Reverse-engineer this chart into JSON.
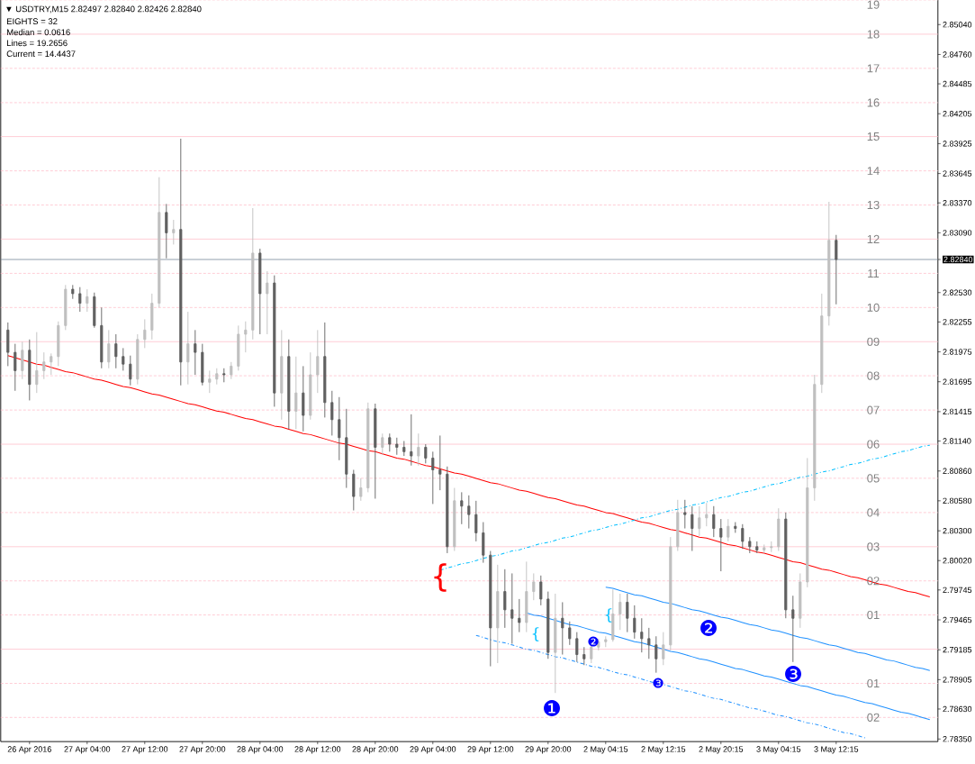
{
  "chart_data": {
    "type": "candlestick",
    "title": "▼ USDTRY,M15 2.82497 2.82840 2.82426 2.82840",
    "annotations": [
      "EIGHTS = 32",
      "Median = 0.0616",
      "Lines = 19.2656",
      "Current = 14.4437",
      "{",
      "{",
      "{",
      "❶",
      "❷",
      "❸",
      "❷",
      "❸",
      {
        "text": "19",
        "y": 2.8527
      },
      {
        "text": "18",
        "y": 2.8495
      },
      {
        "text": "17",
        "y": 2.8463
      },
      {
        "text": "16",
        "y": 2.8431
      },
      {
        "text": "15",
        "y": 2.8399
      },
      {
        "text": "14",
        "y": 2.8367
      },
      {
        "text": "13",
        "y": 2.8335
      },
      {
        "text": "12",
        "y": 2.8303
      },
      {
        "text": "11",
        "y": 2.8271
      },
      {
        "text": "10",
        "y": 2.8239
      },
      {
        "text": "09",
        "y": 2.8207
      },
      {
        "text": "08",
        "y": 2.8175
      },
      {
        "text": "07",
        "y": 2.8143
      },
      {
        "text": "06",
        "y": 2.8111
      },
      {
        "text": "05",
        "y": 2.8079
      },
      {
        "text": "04",
        "y": 2.8047
      },
      {
        "text": "03",
        "y": 2.8015
      },
      {
        "text": "02",
        "y": 2.7983
      },
      {
        "text": "01",
        "y": 2.7951
      },
      {
        "text": "01",
        "y": 2.7887
      },
      {
        "text": "02",
        "y": 2.7855
      }
    ],
    "categories": [
      null,
      null,
      null,
      "26 Apr 2016",
      null,
      null,
      null,
      null,
      null,
      null,
      null,
      "27 Apr 04:00",
      null,
      null,
      null,
      null,
      null,
      null,
      null,
      "27 Apr 12:00",
      null,
      null,
      null,
      null,
      null,
      null,
      null,
      "27 Apr 20:00",
      null,
      null,
      null,
      null,
      null,
      null,
      null,
      "28 Apr 04:00",
      null,
      null,
      null,
      null,
      null,
      null,
      null,
      "28 Apr 12:00",
      null,
      null,
      null,
      null,
      null,
      null,
      null,
      "28 Apr 20:00",
      null,
      null,
      null,
      null,
      null,
      null,
      null,
      "29 Apr 04:00",
      null,
      null,
      null,
      null,
      null,
      null,
      null,
      "29 Apr 12:00",
      null,
      null,
      null,
      null,
      null,
      null,
      null,
      "29 Apr 20:00",
      null,
      null,
      null,
      null,
      null,
      null,
      null,
      "2 May 04:15",
      null,
      null,
      null,
      null,
      null,
      null,
      null,
      "2 May 12:15",
      null,
      null,
      null,
      null,
      null,
      null,
      null,
      "2 May 20:15",
      null,
      null,
      null,
      null,
      null,
      null,
      null,
      "3 May 04:15",
      null,
      null,
      null,
      null,
      null,
      null,
      null,
      "3 May 12:15",
      null,
      null,
      null,
      null,
      null,
      null,
      null,
      null,
      null,
      null,
      null,
      null,
      null
    ],
    "ohlc": [
      [
        2.8218,
        2.8225,
        2.8184,
        2.8197
      ],
      [
        2.8197,
        2.8205,
        2.8161,
        2.818
      ],
      [
        2.818,
        2.8207,
        2.8172,
        2.8199
      ],
      [
        2.8199,
        2.8209,
        2.8152,
        2.8167
      ],
      [
        2.8167,
        2.8216,
        2.8159,
        2.818
      ],
      [
        2.818,
        2.8197,
        2.8172,
        2.8188
      ],
      [
        2.8188,
        2.8196,
        2.8176,
        2.8193
      ],
      [
        2.8193,
        2.8226,
        2.8184,
        2.8222
      ],
      [
        2.8222,
        2.826,
        2.8218,
        2.8256
      ],
      [
        2.8256,
        2.826,
        2.8247,
        2.8252
      ],
      [
        2.8252,
        2.8258,
        2.8235,
        2.8243
      ],
      [
        2.8243,
        2.8256,
        2.8235,
        2.8249
      ],
      [
        2.8249,
        2.8253,
        2.822,
        2.8222
      ],
      [
        2.8222,
        2.8239,
        2.8182,
        2.8188
      ],
      [
        2.8188,
        2.8218,
        2.8182,
        2.8205
      ],
      [
        2.8205,
        2.8214,
        2.8182,
        2.8193
      ],
      [
        2.8193,
        2.8201,
        2.818,
        2.8186
      ],
      [
        2.8186,
        2.8194,
        2.8166,
        2.8172
      ],
      [
        2.8172,
        2.8214,
        2.8167,
        2.8209
      ],
      [
        2.8209,
        2.8228,
        2.8201,
        2.8218
      ],
      [
        2.8218,
        2.8252,
        2.8209,
        2.8243
      ],
      [
        2.8243,
        2.8361,
        2.8239,
        2.8328
      ],
      [
        2.8328,
        2.8336,
        2.8285,
        2.8309
      ],
      [
        2.8309,
        2.8321,
        2.8298,
        2.8312
      ],
      [
        2.8312,
        2.8397,
        2.8166,
        2.8188
      ],
      [
        2.8188,
        2.8235,
        2.8167,
        2.8205
      ],
      [
        2.8205,
        2.8218,
        2.8176,
        2.8197
      ],
      [
        2.8197,
        2.8205,
        2.8166,
        2.8169
      ],
      [
        2.8169,
        2.818,
        2.8159,
        2.8172
      ],
      [
        2.8172,
        2.8182,
        2.8167,
        2.8177
      ],
      [
        2.8177,
        2.8182,
        2.8169,
        2.8176
      ],
      [
        2.8176,
        2.8188,
        2.8172,
        2.8184
      ],
      [
        2.8184,
        2.8222,
        2.818,
        2.8214
      ],
      [
        2.8214,
        2.8226,
        2.8197,
        2.8218
      ],
      [
        2.8218,
        2.8332,
        2.8209,
        2.829
      ],
      [
        2.829,
        2.8294,
        2.8214,
        2.8252
      ],
      [
        2.8252,
        2.8273,
        2.8214,
        2.8262
      ],
      [
        2.8262,
        2.8269,
        2.8146,
        2.8159
      ],
      [
        2.8159,
        2.8218,
        2.8134,
        2.8193
      ],
      [
        2.8193,
        2.8209,
        2.8125,
        2.8142
      ],
      [
        2.8142,
        2.8193,
        2.8125,
        2.8159
      ],
      [
        2.8159,
        2.8184,
        2.8123,
        2.8138
      ],
      [
        2.8138,
        2.8197,
        2.8134,
        2.8176
      ],
      [
        2.8176,
        2.8218,
        2.8159,
        2.8193
      ],
      [
        2.8193,
        2.8225,
        2.8136,
        2.815
      ],
      [
        2.815,
        2.8161,
        2.8119,
        2.8134
      ],
      [
        2.8134,
        2.8155,
        2.8096,
        2.8117
      ],
      [
        2.8117,
        2.8144,
        2.807,
        2.8083
      ],
      [
        2.8083,
        2.8087,
        2.8049,
        2.8062
      ],
      [
        2.8062,
        2.8079,
        2.8058,
        2.807
      ],
      [
        2.807,
        2.815,
        2.8066,
        2.8144
      ],
      [
        2.8144,
        2.8149,
        2.806,
        2.8108
      ],
      [
        2.8108,
        2.8121,
        2.8101,
        2.8117
      ],
      [
        2.8117,
        2.8121,
        2.8104,
        2.8111
      ],
      [
        2.8111,
        2.8117,
        2.8101,
        2.8108
      ],
      [
        2.8108,
        2.8114,
        2.81,
        2.8104
      ],
      [
        2.8104,
        2.8139,
        2.8091,
        2.81
      ],
      [
        2.81,
        2.8121,
        2.8091,
        2.8108
      ],
      [
        2.8108,
        2.8111,
        2.8093,
        2.8098
      ],
      [
        2.8098,
        2.8104,
        2.8055,
        2.8087
      ],
      [
        2.8087,
        2.8119,
        2.8068,
        2.8083
      ],
      [
        2.8083,
        2.809,
        2.8009,
        2.8015
      ],
      [
        2.8015,
        2.807,
        2.8011,
        2.8058
      ],
      [
        2.8058,
        2.8066,
        2.8036,
        2.8053
      ],
      [
        2.8053,
        2.8063,
        2.8032,
        2.8045
      ],
      [
        2.8045,
        2.8058,
        2.802,
        2.8028
      ],
      [
        2.8028,
        2.8038,
        2.8,
        2.8007
      ],
      [
        2.8007,
        2.8011,
        2.7903,
        2.7939
      ],
      [
        2.7939,
        2.7998,
        2.7906,
        2.7973
      ],
      [
        2.7973,
        2.7994,
        2.7939,
        2.7956
      ],
      [
        2.7956,
        2.799,
        2.7924,
        2.7948
      ],
      [
        2.7948,
        2.7966,
        2.7935,
        2.7944
      ],
      [
        2.7944,
        2.8001,
        2.7935,
        2.7973
      ],
      [
        2.7973,
        2.799,
        2.7965,
        2.7982
      ],
      [
        2.7982,
        2.7988,
        2.796,
        2.7966
      ],
      [
        2.7966,
        2.7973,
        2.791,
        2.7916
      ],
      [
        2.7916,
        2.7971,
        2.7878,
        2.7948
      ],
      [
        2.7948,
        2.7963,
        2.7914,
        2.7939
      ],
      [
        2.7939,
        2.7945,
        2.7923,
        2.7929
      ],
      [
        2.7929,
        2.7935,
        2.7907,
        2.7914
      ],
      [
        2.7914,
        2.7921,
        2.7904,
        2.791
      ],
      [
        2.791,
        2.7924,
        2.7906,
        2.7921
      ],
      [
        2.7921,
        2.7929,
        2.7918,
        2.7926
      ],
      [
        2.7926,
        2.7931,
        2.7921,
        2.7928
      ],
      [
        2.7928,
        2.7975,
        2.7926,
        2.7952
      ],
      [
        2.7952,
        2.7971,
        2.7937,
        2.7963
      ],
      [
        2.7963,
        2.7971,
        2.7935,
        2.7948
      ],
      [
        2.7948,
        2.796,
        2.7929,
        2.7935
      ],
      [
        2.7935,
        2.7948,
        2.7916,
        2.7929
      ],
      [
        2.7929,
        2.7939,
        2.791,
        2.7923
      ],
      [
        2.7923,
        2.7931,
        2.7897,
        2.791
      ],
      [
        2.791,
        2.7935,
        2.7904,
        2.7923
      ],
      [
        2.7923,
        2.8024,
        2.7918,
        2.8015
      ],
      [
        2.8015,
        2.8059,
        2.8011,
        2.8047
      ],
      [
        2.8047,
        2.8059,
        2.8032,
        2.8045
      ],
      [
        2.8045,
        2.8053,
        2.8011,
        2.8032
      ],
      [
        2.8032,
        2.8053,
        2.8025,
        2.8042
      ],
      [
        2.8042,
        2.8056,
        2.8034,
        2.8045
      ],
      [
        2.8045,
        2.8053,
        2.8024,
        2.8032
      ],
      [
        2.8032,
        2.8041,
        2.7992,
        2.8024
      ],
      [
        2.8024,
        2.8041,
        2.802,
        2.8034
      ],
      [
        2.8034,
        2.8038,
        2.8028,
        2.8032
      ],
      [
        2.8032,
        2.8036,
        2.8013,
        2.802
      ],
      [
        2.802,
        2.8024,
        2.8009,
        2.8015
      ],
      [
        2.8015,
        2.802,
        2.8009,
        2.8012
      ],
      [
        2.8012,
        2.8017,
        2.8009,
        2.8014
      ],
      [
        2.8014,
        2.802,
        2.801,
        2.8015
      ],
      [
        2.8015,
        2.8051,
        2.8011,
        2.8041
      ],
      [
        2.8041,
        2.8047,
        2.7948,
        2.7956
      ],
      [
        2.7956,
        2.7969,
        2.7907,
        2.7948
      ],
      [
        2.7948,
        2.799,
        2.7939,
        2.7982
      ],
      [
        2.7982,
        2.8098,
        2.7977,
        2.807
      ],
      [
        2.807,
        2.8176,
        2.8058,
        2.8167
      ],
      [
        2.8167,
        2.8252,
        2.8159,
        2.8231
      ],
      [
        2.8231,
        2.8338,
        2.8222,
        2.8302
      ],
      [
        2.8302,
        2.8307,
        2.8242,
        2.8284
      ],
      null,
      null,
      null,
      null,
      null,
      null,
      null,
      null,
      null,
      null,
      null,
      null,
      null
    ],
    "colors": [
      "#606060",
      "#606060",
      "#c0c0c0",
      "#606060",
      "#c0c0c0",
      "#c0c0c0",
      "#c0c0c0",
      "#c0c0c0",
      "#c0c0c0",
      "#606060",
      "#606060",
      "#c0c0c0",
      "#606060",
      "#606060",
      "#c0c0c0",
      "#606060",
      "#606060",
      "#606060",
      "#c0c0c0",
      "#c0c0c0",
      "#c0c0c0",
      "#c0c0c0",
      "#606060",
      "#c0c0c0",
      "#606060",
      "#c0c0c0",
      "#606060",
      "#606060",
      "#c0c0c0",
      "#c0c0c0",
      "#606060",
      "#c0c0c0",
      "#c0c0c0",
      "#c0c0c0",
      "#c0c0c0",
      "#606060",
      "#c0c0c0",
      "#606060",
      "#c0c0c0",
      "#606060",
      "#c0c0c0",
      "#606060",
      "#c0c0c0",
      "#c0c0c0",
      "#606060",
      "#606060",
      "#606060",
      "#606060",
      "#606060",
      "#c0c0c0",
      "#c0c0c0",
      "#606060",
      "#c0c0c0",
      "#606060",
      "#606060",
      "#606060",
      "#606060",
      "#c0c0c0",
      "#606060",
      "#606060",
      "#606060",
      "#606060",
      "#c0c0c0",
      "#606060",
      "#606060",
      "#606060",
      "#606060",
      "#606060",
      "#c0c0c0",
      "#606060",
      "#606060",
      "#606060",
      "#c0c0c0",
      "#c0c0c0",
      "#606060",
      "#606060",
      "#c0c0c0",
      "#606060",
      "#606060",
      "#606060",
      "#606060",
      "#c0c0c0",
      "#c0c0c0",
      "#c0c0c0",
      "#c0c0c0",
      "#c0c0c0",
      "#606060",
      "#606060",
      "#606060",
      "#606060",
      "#606060",
      "#c0c0c0",
      "#c0c0c0",
      "#c0c0c0",
      "#606060",
      "#606060",
      "#c0c0c0",
      "#c0c0c0",
      "#606060",
      "#606060",
      "#c0c0c0",
      "#606060",
      "#606060",
      "#606060",
      "#606060",
      "#c0c0c0",
      "#c0c0c0",
      "#c0c0c0",
      "#606060",
      "#606060",
      "#c0c0c0",
      "#c0c0c0",
      "#c0c0c0",
      "#c0c0c0",
      "#c0c0c0",
      "#606060",
      null,
      null,
      null,
      null,
      null,
      null,
      null,
      null,
      null,
      null,
      null,
      null,
      null
    ],
    "series": [
      {
        "type": "line",
        "color": "#ff0000",
        "line_style": "solid",
        "values": [
          2.8194,
          2.8192,
          2.819,
          2.8188,
          2.8186,
          2.8185,
          2.8183,
          2.8181,
          2.8179,
          2.8178,
          2.8176,
          2.8174,
          2.8172,
          2.8171,
          2.8169,
          2.8167,
          2.8165,
          2.8164,
          2.8162,
          2.816,
          2.8158,
          2.8157,
          2.8155,
          2.8153,
          2.8151,
          2.8149,
          2.8148,
          2.8146,
          2.8144,
          2.8142,
          2.8141,
          2.8139,
          2.8137,
          2.8135,
          2.8134,
          2.8132,
          2.813,
          2.8128,
          2.8127,
          2.8125,
          2.8123,
          2.8121,
          2.812,
          2.8118,
          2.8116,
          2.8114,
          2.8112,
          2.8111,
          2.8109,
          2.8107,
          2.8105,
          2.8104,
          2.8102,
          2.81,
          2.8098,
          2.8097,
          2.8095,
          2.8093,
          2.8091,
          2.809,
          2.8088,
          2.8086,
          2.8084,
          2.8083,
          2.8081,
          2.8079,
          2.8077,
          2.8075,
          2.8074,
          2.8072,
          2.807,
          2.8068,
          2.8067,
          2.8065,
          2.8063,
          2.8061,
          2.806,
          2.8058,
          2.8056,
          2.8054,
          2.8053,
          2.8051,
          2.8049,
          2.8047,
          2.8046,
          2.8044,
          2.8042,
          2.804,
          2.8038,
          2.8037,
          2.8035,
          2.8033,
          2.8031,
          2.803,
          2.8028,
          2.8026,
          2.8024,
          2.8023,
          2.8021,
          2.8019,
          2.8017,
          2.8016,
          2.8014,
          2.8012,
          2.801,
          2.8009,
          2.8007,
          2.8005,
          2.8003,
          2.8001,
          2.8,
          2.7998,
          2.7996,
          2.7994,
          2.7993,
          2.7991,
          2.7989,
          2.7987,
          2.7986,
          2.7984,
          2.7982,
          2.798,
          2.7979,
          2.7977,
          2.7975,
          2.7973,
          2.7972,
          2.797,
          2.7968
        ]
      },
      {
        "type": "line",
        "color": "#00bfff",
        "line_style": "dashed",
        "values": [
          null,
          null,
          null,
          null,
          null,
          null,
          null,
          null,
          null,
          null,
          null,
          null,
          null,
          null,
          null,
          null,
          null,
          null,
          null,
          null,
          null,
          null,
          null,
          null,
          null,
          null,
          null,
          null,
          null,
          null,
          null,
          null,
          null,
          null,
          null,
          null,
          null,
          null,
          null,
          null,
          null,
          null,
          null,
          null,
          null,
          null,
          null,
          null,
          null,
          null,
          null,
          null,
          null,
          null,
          null,
          null,
          null,
          null,
          null,
          null,
          2.7993,
          2.7995,
          2.7997,
          2.7999,
          2.8,
          2.8002,
          2.8004,
          2.8006,
          2.8007,
          2.8009,
          2.8011,
          2.8012,
          2.8014,
          2.8016,
          2.8018,
          2.8019,
          2.8021,
          2.8023,
          2.8024,
          2.8026,
          2.8028,
          2.803,
          2.8031,
          2.8033,
          2.8035,
          2.8036,
          2.8038,
          2.804,
          2.8042,
          2.8043,
          2.8045,
          2.8047,
          2.8049,
          2.805,
          2.8052,
          2.8054,
          2.8055,
          2.8057,
          2.8059,
          2.8061,
          2.8062,
          2.8064,
          2.8066,
          2.8067,
          2.8069,
          2.8071,
          2.8073,
          2.8074,
          2.8076,
          2.8078,
          2.808,
          2.8081,
          2.8083,
          2.8085,
          2.8086,
          2.8088,
          2.809,
          2.8092,
          2.8093,
          2.8095,
          2.8097,
          2.8098,
          2.81,
          2.8102,
          2.8104,
          2.8105,
          2.8107,
          2.8109,
          2.811
        ]
      },
      {
        "type": "line",
        "color": "#1e90ff",
        "line_style": "solid",
        "values": [
          null,
          null,
          null,
          null,
          null,
          null,
          null,
          null,
          null,
          null,
          null,
          null,
          null,
          null,
          null,
          null,
          null,
          null,
          null,
          null,
          null,
          null,
          null,
          null,
          null,
          null,
          null,
          null,
          null,
          null,
          null,
          null,
          null,
          null,
          null,
          null,
          null,
          null,
          null,
          null,
          null,
          null,
          null,
          null,
          null,
          null,
          null,
          null,
          null,
          null,
          null,
          null,
          null,
          null,
          null,
          null,
          null,
          null,
          null,
          null,
          null,
          null,
          null,
          null,
          null,
          null,
          null,
          null,
          null,
          null,
          null,
          null,
          null,
          null,
          null,
          null,
          null,
          null,
          null,
          null,
          null,
          null,
          null,
          2.7977,
          2.7976,
          2.7974,
          2.7972,
          2.797,
          2.7969,
          2.7967,
          2.7965,
          2.7963,
          2.7962,
          2.796,
          2.7958,
          2.7956,
          2.7955,
          2.7953,
          2.7951,
          2.7949,
          2.7948,
          2.7946,
          2.7944,
          2.7942,
          2.7941,
          2.7939,
          2.7937,
          2.7936,
          2.7934,
          2.7932,
          2.793,
          2.7929,
          2.7927,
          2.7925,
          2.7923,
          2.7922,
          2.792,
          2.7918,
          2.7916,
          2.7915,
          2.7913,
          2.7911,
          2.7909,
          2.7908,
          2.7906,
          2.7904,
          2.7902,
          2.7901,
          2.7899
        ]
      },
      {
        "type": "line",
        "color": "#1e90ff",
        "line_style": "solid",
        "values": [
          null,
          null,
          null,
          null,
          null,
          null,
          null,
          null,
          null,
          null,
          null,
          null,
          null,
          null,
          null,
          null,
          null,
          null,
          null,
          null,
          null,
          null,
          null,
          null,
          null,
          null,
          null,
          null,
          null,
          null,
          null,
          null,
          null,
          null,
          null,
          null,
          null,
          null,
          null,
          null,
          null,
          null,
          null,
          null,
          null,
          null,
          null,
          null,
          null,
          null,
          null,
          null,
          null,
          null,
          null,
          null,
          null,
          null,
          null,
          null,
          null,
          null,
          null,
          null,
          null,
          null,
          null,
          null,
          null,
          null,
          null,
          null,
          2.7953,
          2.7951,
          2.795,
          2.7948,
          2.7946,
          2.7944,
          2.7942,
          2.7941,
          2.7939,
          2.7937,
          2.7935,
          2.7934,
          2.7932,
          2.793,
          2.7928,
          2.7926,
          2.7925,
          2.7923,
          2.7921,
          2.7919,
          2.7917,
          2.7916,
          2.7914,
          2.7912,
          2.791,
          2.7909,
          2.7907,
          2.7905,
          2.7903,
          2.7901,
          2.79,
          2.7898,
          2.7896,
          2.7894,
          2.7893,
          2.7891,
          2.7889,
          2.7887,
          2.7885,
          2.7884,
          2.7882,
          2.788,
          2.7878,
          2.7876,
          2.7875,
          2.7873,
          2.7871,
          2.7869,
          2.7868,
          2.7866,
          2.7864,
          2.7862,
          2.786,
          2.7859,
          2.7857,
          2.7855,
          2.7853
        ]
      },
      {
        "type": "line",
        "color": "#1e90ff",
        "line_style": "dashed",
        "values": [
          null,
          null,
          null,
          null,
          null,
          null,
          null,
          null,
          null,
          null,
          null,
          null,
          null,
          null,
          null,
          null,
          null,
          null,
          null,
          null,
          null,
          null,
          null,
          null,
          null,
          null,
          null,
          null,
          null,
          null,
          null,
          null,
          null,
          null,
          null,
          null,
          null,
          null,
          null,
          null,
          null,
          null,
          null,
          null,
          null,
          null,
          null,
          null,
          null,
          null,
          null,
          null,
          null,
          null,
          null,
          null,
          null,
          null,
          null,
          null,
          null,
          null,
          null,
          null,
          null,
          2.7932,
          2.793,
          2.7928,
          2.7926,
          2.7925,
          2.7923,
          2.7921,
          2.7919,
          2.7918,
          2.7916,
          2.7914,
          2.7912,
          2.7911,
          2.7909,
          2.7907,
          2.7905,
          2.7903,
          2.7902,
          2.79,
          2.7898,
          2.7896,
          2.7895,
          2.7893,
          2.7891,
          2.7889,
          2.7887,
          2.7886,
          2.7884,
          2.7882,
          2.788,
          2.7879,
          2.7877,
          2.7875,
          2.7873,
          2.7872,
          2.787,
          2.7868,
          2.7866,
          2.7864,
          2.7863,
          2.7861,
          2.7859,
          2.7857,
          2.7856,
          2.7854,
          2.7852,
          2.785,
          2.7849,
          2.7847,
          2.7845,
          2.7843,
          2.7841,
          2.784,
          2.7838,
          2.7836,
          null,
          null,
          null,
          null,
          null,
          null,
          null,
          null,
          null
        ]
      }
    ],
    "ylim": [
      2.78325,
      2.85302
    ],
    "yticks": [
      {
        "value": 2.8504,
        "label": "2.85040"
      },
      {
        "value": 2.8476,
        "label": "2.84760"
      },
      {
        "value": 2.84485,
        "label": "2.84485"
      },
      {
        "value": 2.84205,
        "label": "2.84205"
      },
      {
        "value": 2.83925,
        "label": "2.83925"
      },
      {
        "value": 2.83645,
        "label": "2.83645"
      },
      {
        "value": 2.8337,
        "label": "2.83370"
      },
      {
        "value": 2.8309,
        "label": "2.83090"
      },
      {
        "value": 2.8284,
        "label": "2.82840"
      },
      {
        "value": 2.8253,
        "label": "2.82530"
      },
      {
        "value": 2.82255,
        "label": "2.82255"
      },
      {
        "value": 2.81975,
        "label": "2.81975"
      },
      {
        "value": 2.81695,
        "label": "2.81695"
      },
      {
        "value": 2.81415,
        "label": "2.81415"
      },
      {
        "value": 2.8114,
        "label": "2.81140"
      },
      {
        "value": 2.8086,
        "label": "2.80860"
      },
      {
        "value": 2.8058,
        "label": "2.80580"
      },
      {
        "value": 2.803,
        "label": "2.80300"
      },
      {
        "value": 2.8002,
        "label": "2.80020"
      },
      {
        "value": 2.79745,
        "label": "2.79745"
      },
      {
        "value": 2.79465,
        "label": "2.79465"
      },
      {
        "value": 2.79185,
        "label": "2.79185"
      },
      {
        "value": 2.78905,
        "label": "2.78905"
      },
      {
        "value": 2.7863,
        "label": "2.78630"
      },
      {
        "value": 2.7835,
        "label": "2.78350"
      }
    ],
    "ref_lines": [
      {
        "axis": "y",
        "value": 2.8527,
        "color": "#ffc0cb",
        "line_style": "dashed"
      },
      {
        "axis": "y",
        "value": 2.8495,
        "color": "#ffc0cb",
        "line_style": "solid"
      },
      {
        "axis": "y",
        "value": 2.8463,
        "color": "#ffc0cb",
        "line_style": "dashed"
      },
      {
        "axis": "y",
        "value": 2.8431,
        "color": "#ffc0cb",
        "line_style": "dashed"
      },
      {
        "axis": "y",
        "value": 2.8399,
        "color": "#ffc0cb",
        "line_style": "solid"
      },
      {
        "axis": "y",
        "value": 2.8367,
        "color": "#ffc0cb",
        "line_style": "dashed"
      },
      {
        "axis": "y",
        "value": 2.8335,
        "color": "#ffc0cb",
        "line_style": "dashed"
      },
      {
        "axis": "y",
        "value": 2.8303,
        "color": "#ffc0cb",
        "line_style": "solid"
      },
      {
        "axis": "y",
        "value": 2.8271,
        "color": "#ffc0cb",
        "line_style": "dashed"
      },
      {
        "axis": "y",
        "value": 2.8239,
        "color": "#ffc0cb",
        "line_style": "dashed"
      },
      {
        "axis": "y",
        "value": 2.8207,
        "color": "#ffc0cb",
        "line_style": "solid"
      },
      {
        "axis": "y",
        "value": 2.8175,
        "color": "#ffc0cb",
        "line_style": "dashed"
      },
      {
        "axis": "y",
        "value": 2.8143,
        "color": "#ffc0cb",
        "line_style": "dashed"
      },
      {
        "axis": "y",
        "value": 2.8111,
        "color": "#ffc0cb",
        "line_style": "solid"
      },
      {
        "axis": "y",
        "value": 2.8079,
        "color": "#ffc0cb",
        "line_style": "dashed"
      },
      {
        "axis": "y",
        "value": 2.8047,
        "color": "#ffc0cb",
        "line_style": "dashed"
      },
      {
        "axis": "y",
        "value": 2.8015,
        "color": "#ffc0cb",
        "line_style": "solid"
      },
      {
        "axis": "y",
        "value": 2.7983,
        "color": "#ffc0cb",
        "line_style": "dashed"
      },
      {
        "axis": "y",
        "value": 2.7951,
        "color": "#ffc0cb",
        "line_style": "dashed"
      },
      {
        "axis": "y",
        "value": 2.7919,
        "color": "#ffc0cb",
        "line_style": "solid"
      },
      {
        "axis": "y",
        "value": 2.7887,
        "color": "#ffc0cb",
        "line_style": "dashed"
      },
      {
        "axis": "y",
        "value": 2.7855,
        "color": "#ffc0cb",
        "line_style": "dashed"
      },
      {
        "axis": "y",
        "value": 2.8284,
        "color": "#778899",
        "line_style": "solid"
      }
    ]
  }
}
